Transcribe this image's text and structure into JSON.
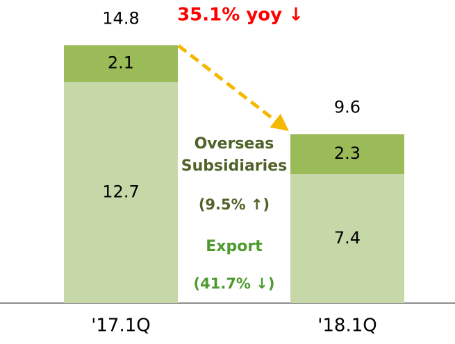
{
  "chart_data": {
    "type": "stacked_bar",
    "categories": [
      "'17.1Q",
      "'18.1Q"
    ],
    "series": [
      {
        "name": "Export",
        "color": "#c6d7a8",
        "label_color": "#4e9a2e",
        "change": "(41.7% ↓)",
        "values": [
          12.7,
          7.4
        ]
      },
      {
        "name": "Overseas Subsidiaries",
        "color": "#9bbb59",
        "label_color": "#4f6228",
        "change": "(9.5% ↑)",
        "values": [
          2.1,
          2.3
        ]
      }
    ],
    "totals": [
      14.8,
      9.6
    ],
    "annotation": "35.1% yoy ↓",
    "ylim": [
      0,
      17
    ]
  }
}
